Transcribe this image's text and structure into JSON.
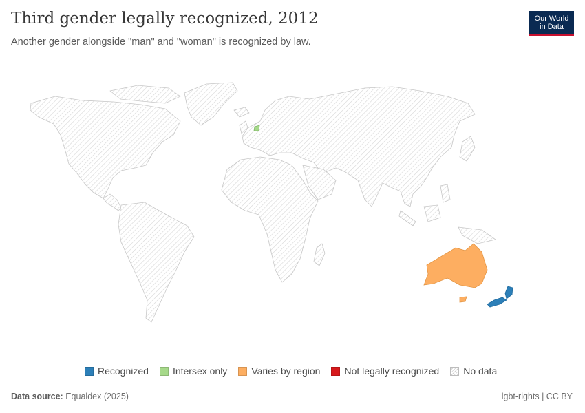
{
  "header": {
    "title": "Third gender legally recognized, 2012",
    "subtitle": "Another gender alongside \"man\" and \"woman\" is recognized by law.",
    "logo_line1": "Our World",
    "logo_line2": "in Data"
  },
  "legend": {
    "items": [
      {
        "label": "Recognized",
        "color": "#2c7fb8"
      },
      {
        "label": "Intersex only",
        "color": "#a6d98a"
      },
      {
        "label": "Varies by region",
        "color": "#fdae61"
      },
      {
        "label": "Not legally recognized",
        "color": "#d7191c"
      },
      {
        "label": "No data",
        "color": "hatched"
      }
    ]
  },
  "map": {
    "year": "2012",
    "countries": {
      "new-zealand": "Recognized",
      "netherlands": "Intersex only",
      "australia": "Varies by region"
    },
    "default": "No data"
  },
  "footer": {
    "source_label": "Data source:",
    "source_value": "Equaldex (2025)",
    "right": "lgbt-rights | CC BY"
  }
}
